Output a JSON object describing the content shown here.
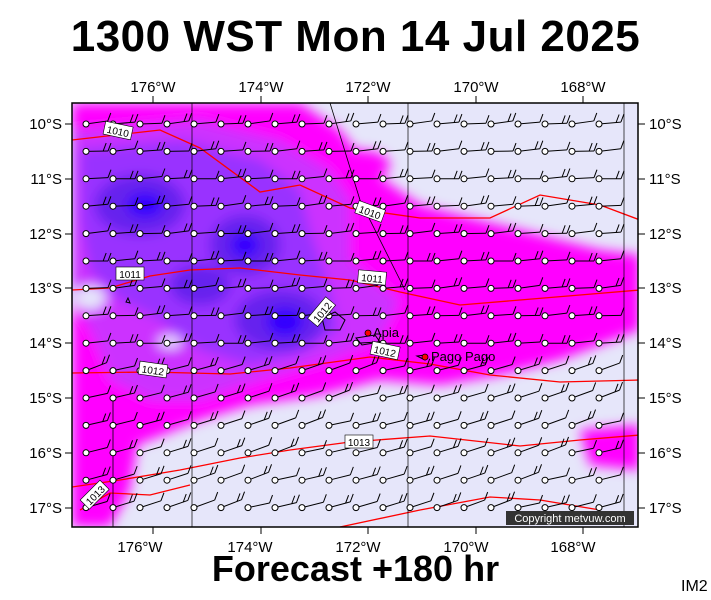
{
  "header": {
    "title": "1300 WST Mon 14 Jul 2025"
  },
  "footer": {
    "subtitle": "Forecast +180 hr",
    "code": "IM2",
    "copyright": "Copyright metvuw.com"
  },
  "map": {
    "lon_labels": [
      "176°W",
      "174°W",
      "172°W",
      "170°W",
      "168°W"
    ],
    "lat_labels": [
      "10°S",
      "11°S",
      "12°S",
      "13°S",
      "14°S",
      "15°S",
      "16°S",
      "17°S"
    ],
    "isobar_labels": [
      "1010",
      "1010",
      "1011",
      "1011",
      "1012",
      "1012",
      "1012",
      "1013",
      "1013"
    ],
    "places": [
      {
        "name": "Apia"
      },
      {
        "name": "Pago Pago"
      }
    ],
    "colors": {
      "background": "#e6e6fa",
      "magenta": "#ff00ff",
      "violet": "#cc33ff",
      "purple": "#9933ff",
      "blue_purple": "#6622ee",
      "blue": "#3300ff",
      "isobar": "#ff0000"
    }
  }
}
